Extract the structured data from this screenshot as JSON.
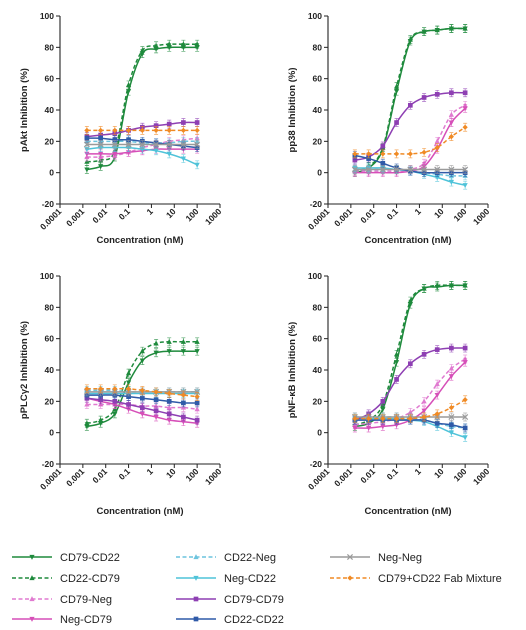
{
  "chart_data": [
    {
      "type": "line",
      "xlabel": "Concentration (nM)",
      "ylabel": "pAkt Inhibition (%)",
      "xscale": "log",
      "xlim": [
        0.0001,
        1000
      ],
      "ylim": [
        -20,
        100
      ],
      "xticks": [
        "0.0001",
        "0.001",
        "0.01",
        "0.1",
        "1",
        "10",
        "100",
        "1000"
      ],
      "yticks": [
        "-20",
        "0",
        "20",
        "40",
        "60",
        "80",
        "100"
      ],
      "x": [
        0.0015,
        0.006,
        0.025,
        0.1,
        0.4,
        1.6,
        6,
        25,
        100
      ],
      "series": [
        {
          "name": "CD79-CD22",
          "values": [
            2,
            4,
            10,
            52,
            76,
            79,
            80,
            80,
            80
          ]
        },
        {
          "name": "CD22-CD79",
          "values": [
            7,
            8,
            14,
            56,
            78,
            81,
            82,
            82,
            82
          ]
        },
        {
          "name": "CD79-Neg",
          "values": [
            10,
            10,
            11,
            13,
            16,
            18,
            20,
            21,
            22
          ]
        },
        {
          "name": "Neg-CD79",
          "values": [
            12,
            12,
            12,
            13,
            14,
            15,
            15,
            15,
            15
          ]
        },
        {
          "name": "CD22-Neg",
          "values": [
            20,
            20,
            20,
            20,
            19,
            19,
            19,
            20,
            20
          ]
        },
        {
          "name": "Neg-CD22",
          "values": [
            15,
            16,
            16,
            16,
            15,
            14,
            12,
            9,
            5
          ]
        },
        {
          "name": "CD79-CD79",
          "values": [
            23,
            24,
            25,
            27,
            29,
            30,
            31,
            32,
            32
          ]
        },
        {
          "name": "CD22-CD22",
          "values": [
            22,
            22,
            21,
            21,
            20,
            19,
            18,
            17,
            16
          ]
        },
        {
          "name": "Neg-Neg",
          "values": [
            18,
            18,
            18,
            18,
            18,
            18,
            18,
            18,
            18
          ]
        },
        {
          "name": "CD79+CD22 Fab Mixture",
          "values": [
            27,
            27,
            27,
            27,
            27,
            27,
            27,
            27,
            27
          ]
        }
      ]
    },
    {
      "type": "line",
      "xlabel": "Concentration (nM)",
      "ylabel": "pp38 Inhibition (%)",
      "xscale": "log",
      "xlim": [
        0.0001,
        1000
      ],
      "ylim": [
        -20,
        100
      ],
      "xticks": [
        "0.0001",
        "0.001",
        "0.01",
        "0.1",
        "1",
        "10",
        "100",
        "1000"
      ],
      "yticks": [
        "-20",
        "0",
        "20",
        "40",
        "60",
        "80",
        "100"
      ],
      "x": [
        0.0015,
        0.006,
        0.025,
        0.1,
        0.4,
        1.6,
        6,
        25,
        100
      ],
      "series": [
        {
          "name": "CD79-CD22",
          "values": [
            0,
            3,
            15,
            52,
            84,
            90,
            91,
            92,
            92
          ]
        },
        {
          "name": "CD22-CD79",
          "values": [
            1,
            4,
            16,
            55,
            85,
            90,
            91,
            92,
            92
          ]
        },
        {
          "name": "CD79-Neg",
          "values": [
            1,
            1,
            1,
            1,
            2,
            6,
            20,
            37,
            43
          ]
        },
        {
          "name": "Neg-CD79",
          "values": [
            0,
            0,
            0,
            0,
            1,
            4,
            15,
            32,
            41
          ]
        },
        {
          "name": "CD22-Neg",
          "values": [
            2,
            2,
            2,
            2,
            1,
            0,
            -1,
            -2,
            -2
          ]
        },
        {
          "name": "Neg-CD22",
          "values": [
            3,
            3,
            3,
            2,
            1,
            -1,
            -3,
            -6,
            -8
          ]
        },
        {
          "name": "CD79-CD79",
          "values": [
            8,
            10,
            17,
            32,
            43,
            48,
            50,
            51,
            51
          ]
        },
        {
          "name": "CD22-CD22",
          "values": [
            11,
            9,
            6,
            3,
            1,
            0,
            0,
            0,
            0
          ]
        },
        {
          "name": "Neg-Neg",
          "values": [
            2,
            2,
            2,
            2,
            2,
            2,
            2,
            2,
            2
          ]
        },
        {
          "name": "CD79+CD22 Fab Mixture",
          "values": [
            12,
            12,
            12,
            12,
            12,
            13,
            16,
            23,
            29
          ]
        }
      ]
    },
    {
      "type": "line",
      "xlabel": "Concentration (nM)",
      "ylabel": "pPLCγ2 Inhibition (%)",
      "xscale": "log",
      "xlim": [
        0.0001,
        1000
      ],
      "ylim": [
        -20,
        100
      ],
      "xticks": [
        "0.0001",
        "0.001",
        "0.01",
        "0.1",
        "1",
        "10",
        "100",
        "1000"
      ],
      "yticks": [
        "-20",
        "0",
        "20",
        "40",
        "60",
        "80",
        "100"
      ],
      "x": [
        0.0015,
        0.006,
        0.025,
        0.1,
        0.4,
        1.6,
        6,
        25,
        100
      ],
      "series": [
        {
          "name": "CD79-CD22",
          "values": [
            4,
            6,
            12,
            32,
            46,
            51,
            52,
            52,
            52
          ]
        },
        {
          "name": "CD22-CD79",
          "values": [
            6,
            8,
            15,
            38,
            52,
            57,
            58,
            58,
            58
          ]
        },
        {
          "name": "CD79-Neg",
          "values": [
            18,
            18,
            18,
            18,
            17,
            17,
            16,
            16,
            15
          ]
        },
        {
          "name": "Neg-CD79",
          "values": [
            22,
            20,
            18,
            15,
            12,
            10,
            8,
            7,
            6
          ]
        },
        {
          "name": "CD22-Neg",
          "values": [
            27,
            27,
            27,
            26,
            26,
            26,
            26,
            26,
            26
          ]
        },
        {
          "name": "Neg-CD22",
          "values": [
            25,
            25,
            25,
            25,
            25,
            25,
            25,
            25,
            25
          ]
        },
        {
          "name": "CD79-CD79",
          "values": [
            22,
            21,
            20,
            18,
            16,
            14,
            12,
            10,
            8
          ]
        },
        {
          "name": "CD22-CD22",
          "values": [
            24,
            24,
            24,
            23,
            22,
            21,
            20,
            19,
            19
          ]
        },
        {
          "name": "Neg-Neg",
          "values": [
            26,
            26,
            26,
            26,
            26,
            26,
            26,
            26,
            26
          ]
        },
        {
          "name": "CD79+CD22 Fab Mixture",
          "values": [
            28,
            28,
            28,
            28,
            27,
            26,
            25,
            24,
            23
          ]
        }
      ]
    },
    {
      "type": "line",
      "xlabel": "Concentration (nM)",
      "ylabel": "pNF-κB Inhibition (%)",
      "xscale": "log",
      "xlim": [
        0.0001,
        1000
      ],
      "ylim": [
        -20,
        100
      ],
      "xticks": [
        "0.0001",
        "0.001",
        "0.01",
        "0.1",
        "1",
        "10",
        "100",
        "1000"
      ],
      "yticks": [
        "-20",
        "0",
        "20",
        "40",
        "60",
        "80",
        "100"
      ],
      "x": [
        0.0015,
        0.006,
        0.025,
        0.1,
        0.4,
        1.6,
        6,
        25,
        100
      ],
      "series": [
        {
          "name": "CD79-CD22",
          "values": [
            4,
            6,
            15,
            45,
            82,
            92,
            93,
            94,
            94
          ]
        },
        {
          "name": "CD22-CD79",
          "values": [
            5,
            8,
            18,
            50,
            84,
            92,
            94,
            94,
            94
          ]
        },
        {
          "name": "CD79-Neg",
          "values": [
            5,
            6,
            7,
            9,
            13,
            20,
            31,
            41,
            47
          ]
        },
        {
          "name": "Neg-CD79",
          "values": [
            3,
            3,
            4,
            5,
            8,
            14,
            24,
            36,
            45
          ]
        },
        {
          "name": "CD22-Neg",
          "values": [
            10,
            10,
            10,
            10,
            9,
            8,
            6,
            4,
            3
          ]
        },
        {
          "name": "Neg-CD22",
          "values": [
            9,
            9,
            9,
            9,
            8,
            7,
            4,
            0,
            -3
          ]
        },
        {
          "name": "CD79-CD79",
          "values": [
            8,
            12,
            20,
            34,
            44,
            50,
            53,
            54,
            54
          ]
        },
        {
          "name": "CD22-CD22",
          "values": [
            8,
            8,
            8,
            8,
            8,
            8,
            6,
            5,
            3
          ]
        },
        {
          "name": "Neg-Neg",
          "values": [
            10,
            10,
            10,
            10,
            10,
            10,
            10,
            10,
            10
          ]
        },
        {
          "name": "CD79+CD22 Fab Mixture",
          "values": [
            9,
            9,
            9,
            9,
            9,
            10,
            12,
            16,
            21
          ]
        }
      ]
    }
  ],
  "legend": [
    {
      "key": "cd79_cd22",
      "label": "CD79-CD22",
      "color": "#1e8a3c",
      "dash": "solid",
      "marker": "tri-down"
    },
    {
      "key": "cd22_cd79",
      "label": "CD22-CD79",
      "color": "#1e8a3c",
      "dash": "dashed",
      "marker": "tri-up"
    },
    {
      "key": "cd79_neg",
      "label": "CD79-Neg",
      "color": "#e07ad0",
      "dash": "dashed",
      "marker": "tri-up"
    },
    {
      "key": "neg_cd79",
      "label": "Neg-CD79",
      "color": "#d64fb8",
      "dash": "solid",
      "marker": "tri-down"
    },
    {
      "key": "cd22_neg",
      "label": "CD22-Neg",
      "color": "#6cc4de",
      "dash": "dashed",
      "marker": "tri-up"
    },
    {
      "key": "neg_cd22",
      "label": "Neg-CD22",
      "color": "#4fc3d9",
      "dash": "solid",
      "marker": "tri-down"
    },
    {
      "key": "cd79_cd79",
      "label": "CD79-CD79",
      "color": "#8e3fb3",
      "dash": "solid",
      "marker": "square"
    },
    {
      "key": "cd22_cd22",
      "label": "CD22-CD22",
      "color": "#2f5aa8",
      "dash": "solid",
      "marker": "square"
    },
    {
      "key": "neg_neg",
      "label": "Neg-Neg",
      "color": "#9a9a9a",
      "dash": "solid",
      "marker": "x"
    },
    {
      "key": "fab_mix",
      "label": "CD79+CD22 Fab Mixture",
      "color": "#f08a24",
      "dash": "dashed",
      "marker": "diamond"
    }
  ]
}
